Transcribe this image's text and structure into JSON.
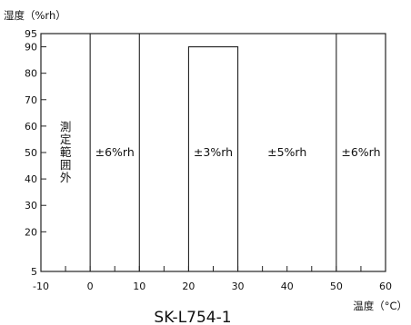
{
  "chart_data": {
    "type": "area",
    "model": "SK-L754-1",
    "ylabel": "湿度（%rh）",
    "xlabel": "温度（°C）",
    "xlim": [
      -10,
      60
    ],
    "ylim": [
      5,
      95
    ],
    "x_ticks": [
      -10,
      0,
      10,
      20,
      30,
      40,
      50,
      60
    ],
    "y_ticks": [
      5,
      20,
      30,
      40,
      50,
      60,
      70,
      80,
      90,
      95
    ],
    "x_minor_step": 5,
    "boundaries": [
      0,
      10,
      50
    ],
    "box": {
      "x_from": 20,
      "x_to": 30,
      "y_top": 90
    },
    "zones": [
      {
        "label": "測定範囲外",
        "x_from": -10,
        "x_to": 0,
        "vertical": true
      },
      {
        "label": "±6%rh",
        "x_from": 0,
        "x_to": 10
      },
      {
        "label": "±3%rh",
        "x_from": 20,
        "x_to": 30
      },
      {
        "label": "±5%rh",
        "x_from": 30,
        "x_to": 50
      },
      {
        "label": "±6%rh",
        "x_from": 50,
        "x_to": 60
      }
    ],
    "label_y": 50,
    "grid": false
  }
}
